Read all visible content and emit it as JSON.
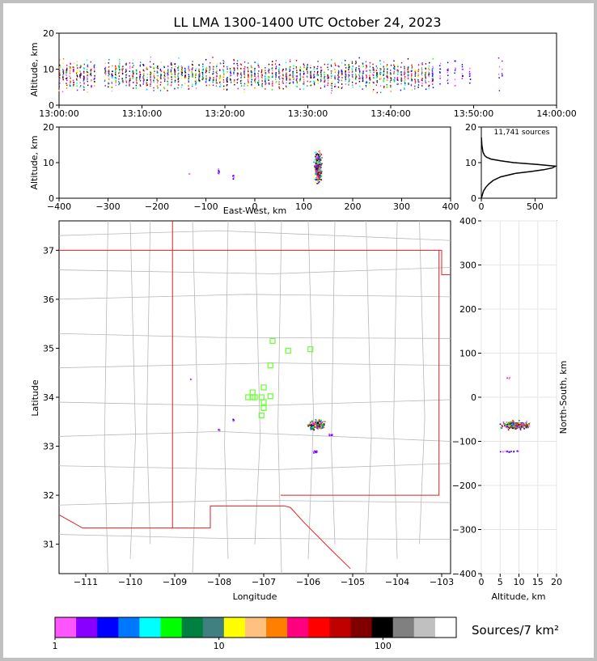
{
  "title": "LL LMA 1300-1400 UTC October 24, 2023",
  "colorbar_label": "Sources/7 km²",
  "source_count": "11,741 sources",
  "chart_data": [
    {
      "id": "time_height",
      "type": "heatmap",
      "ylabel": "Altitude, km",
      "xlim": [
        "13:00:00",
        "14:00:00"
      ],
      "ylim": [
        0,
        20
      ],
      "xticks": [
        "13:00:00",
        "13:10:00",
        "13:20:00",
        "13:30:00",
        "13:40:00",
        "13:50:00",
        "14:00:00"
      ],
      "yticks": [
        0,
        10,
        20
      ],
      "activity_minutes": [
        {
          "start": 0,
          "end": 4.5,
          "density": "high"
        },
        {
          "start": 5.5,
          "end": 45,
          "density": "high"
        },
        {
          "start": 45,
          "end": 50,
          "density": "medium"
        },
        {
          "start": 53,
          "end": 53.4,
          "density": "low"
        }
      ]
    },
    {
      "id": "ew_altitude",
      "type": "heatmap",
      "xlabel": "East-West, km",
      "ylabel": "Altitude, km",
      "xlim": [
        -400,
        400
      ],
      "ylim": [
        0,
        20
      ],
      "xticks": [
        -400,
        -300,
        -200,
        -100,
        0,
        100,
        200,
        300,
        400
      ],
      "yticks": [
        0,
        10,
        20
      ],
      "clusters": [
        {
          "x": 128,
          "y": 9,
          "x_spread": 10,
          "y_spread": 6,
          "count": 320,
          "color_range": "full"
        },
        {
          "x": -75,
          "y": 7.5,
          "x_spread": 2,
          "y_spread": 1,
          "count": 10,
          "color_range": "low"
        },
        {
          "x": -45,
          "y": 6,
          "x_spread": 2,
          "y_spread": 1,
          "count": 10,
          "color_range": "low"
        },
        {
          "x": -135,
          "y": 7,
          "x_spread": 1,
          "y_spread": 0.5,
          "count": 2,
          "color_range": "low"
        }
      ]
    },
    {
      "id": "altitude_histogram",
      "type": "line",
      "xlim": [
        0,
        700
      ],
      "ylim": [
        0,
        20
      ],
      "xticks": [
        0,
        500
      ],
      "yticks": [
        0,
        10,
        20
      ],
      "series": [
        {
          "altitude_km": [
            0,
            1,
            2,
            3,
            4,
            5,
            6,
            7,
            7.5,
            8,
            8.5,
            9,
            9.5,
            10,
            10.5,
            11,
            11.5,
            12,
            13,
            14,
            15,
            16,
            17
          ],
          "sources": [
            0,
            10,
            20,
            40,
            70,
            110,
            180,
            320,
            460,
            580,
            660,
            690,
            520,
            300,
            180,
            90,
            50,
            30,
            15,
            10,
            5,
            3,
            1
          ]
        }
      ]
    },
    {
      "id": "plan_view",
      "type": "map",
      "xlabel": "Longitude",
      "ylabel": "Latitude",
      "xlim": [
        -111.6,
        -102.8
      ],
      "ylim": [
        30.4,
        37.6
      ],
      "xticks": [
        -111,
        -110,
        -109,
        -108,
        -107,
        -106,
        -105,
        -104,
        -103
      ],
      "yticks": [
        31,
        32,
        33,
        34,
        35,
        36,
        37
      ],
      "stations": [
        {
          "lon": -106.8,
          "lat": 35.15
        },
        {
          "lon": -106.45,
          "lat": 34.95
        },
        {
          "lon": -105.95,
          "lat": 34.98
        },
        {
          "lon": -106.85,
          "lat": 34.65
        },
        {
          "lon": -107.0,
          "lat": 34.2
        },
        {
          "lon": -107.25,
          "lat": 34.1
        },
        {
          "lon": -107.35,
          "lat": 34.0
        },
        {
          "lon": -107.2,
          "lat": 34.0
        },
        {
          "lon": -107.05,
          "lat": 34.0
        },
        {
          "lon": -106.85,
          "lat": 34.02
        },
        {
          "lon": -107.0,
          "lat": 33.9
        },
        {
          "lon": -107.0,
          "lat": 33.78
        },
        {
          "lon": -107.05,
          "lat": 33.63
        },
        {
          "lon": -107.25,
          "lat": 34.0
        }
      ],
      "clusters": [
        {
          "lon": -105.83,
          "lat": 33.45,
          "x_spread": 0.22,
          "y_spread": 0.12,
          "count": 240,
          "color_range": "full"
        },
        {
          "lon": -105.85,
          "lat": 32.9,
          "x_spread": 0.08,
          "y_spread": 0.05,
          "count": 14,
          "color_range": "low"
        },
        {
          "lon": -107.7,
          "lat": 33.55,
          "x_spread": 0.03,
          "y_spread": 0.03,
          "count": 5,
          "color_range": "low"
        },
        {
          "lon": -108.02,
          "lat": 33.35,
          "x_spread": 0.03,
          "y_spread": 0.02,
          "count": 5,
          "color_range": "low"
        },
        {
          "lon": -108.65,
          "lat": 34.38,
          "x_spread": 0.02,
          "y_spread": 0.02,
          "count": 2,
          "color_range": "low"
        },
        {
          "lon": -105.5,
          "lat": 33.25,
          "x_spread": 0.08,
          "y_spread": 0.02,
          "count": 6,
          "color_range": "low"
        }
      ]
    },
    {
      "id": "altitude_ns",
      "type": "heatmap",
      "xlabel": "Altitude, km",
      "ylabel": "North-South, km",
      "xlim": [
        0,
        20
      ],
      "ylim": [
        -400,
        400
      ],
      "xticks": [
        0,
        5,
        10,
        15,
        20
      ],
      "yticks": [
        -400,
        -300,
        -200,
        -100,
        0,
        100,
        200,
        300,
        400
      ],
      "clusters": [
        {
          "x": 9,
          "y": -62,
          "x_spread": 5,
          "y_spread": 12,
          "count": 320,
          "color_range": "full"
        },
        {
          "x": 8,
          "y": -122,
          "x_spread": 4,
          "y_spread": 3,
          "count": 18,
          "color_range": "low"
        },
        {
          "x": 7,
          "y": 45,
          "x_spread": 1,
          "y_spread": 3,
          "count": 4,
          "color_range": "low"
        }
      ]
    },
    {
      "id": "colorbar",
      "type": "colorbar",
      "scale": "log",
      "range": [
        1,
        280
      ],
      "tick_labels": [
        "1",
        "10",
        "100"
      ],
      "colors": [
        "#ff55ff",
        "#8800ff",
        "#0000ff",
        "#0077ff",
        "#00ffff",
        "#00ff00",
        "#008040",
        "#408080",
        "#ffff00",
        "#ffc080",
        "#ff8000",
        "#ff0080",
        "#ff0000",
        "#c00000",
        "#800000",
        "#000000",
        "#808080",
        "#c0c0c0",
        "#ffffff"
      ]
    }
  ]
}
